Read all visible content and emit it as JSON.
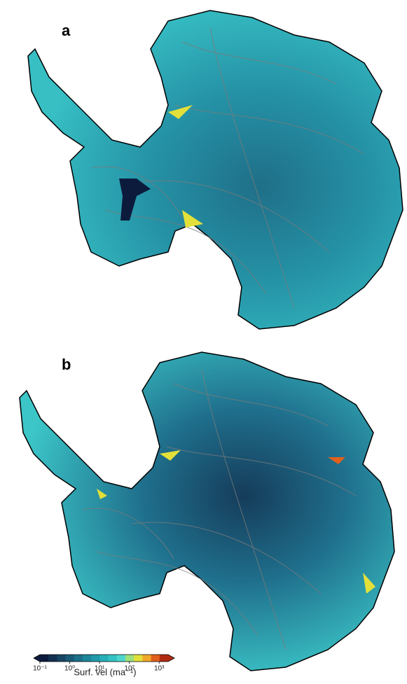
{
  "panels": [
    {
      "label": "a"
    },
    {
      "label": "b"
    }
  ],
  "colorbar": {
    "label": "Surf. vel (ma⁻¹)",
    "scale": "log",
    "lim": [
      0.1,
      2000
    ],
    "ticks": [
      {
        "value": 0.1,
        "label": "10⁻¹"
      },
      {
        "value": 1,
        "label": "10⁰"
      },
      {
        "value": 10,
        "label": "10¹"
      },
      {
        "value": 100,
        "label": "10²"
      },
      {
        "value": 1000,
        "label": "10³"
      }
    ],
    "colors": [
      "#0c1b3c",
      "#13304f",
      "#174563",
      "#1a5a77",
      "#1c6f89",
      "#1d859a",
      "#209aaa",
      "#27afb8",
      "#33c3c4",
      "#4fd6cc",
      "#9ee07a",
      "#e3e03a",
      "#f0a82a",
      "#e0601c",
      "#b02a12"
    ]
  }
}
